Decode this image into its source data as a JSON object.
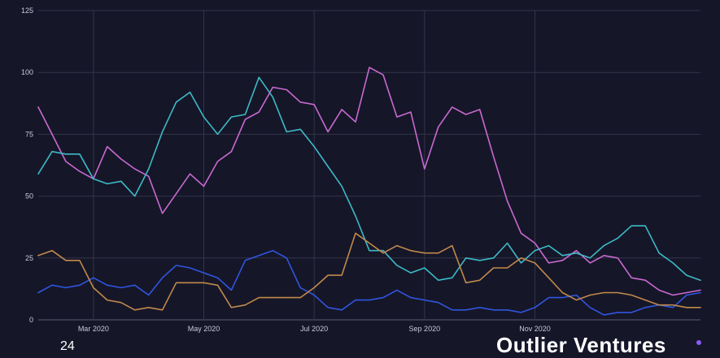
{
  "chart_data": {
    "type": "line",
    "title": "",
    "xlabel": "",
    "ylabel": "",
    "ylim": [
      0,
      125
    ],
    "yticks": [
      0,
      25,
      50,
      75,
      100,
      125
    ],
    "xtick_labels": [
      "Mar 2020",
      "May 2020",
      "Jul 2020",
      "Sep 2020",
      "Nov 2020"
    ],
    "xtick_index": [
      4,
      12,
      20,
      28,
      36
    ],
    "grid": true,
    "legend": "none",
    "x_step": "weekly",
    "series": [
      {
        "color": "#c86ad0",
        "values": [
          86,
          75,
          64,
          60,
          57,
          70,
          65,
          61,
          58,
          43,
          51,
          59,
          54,
          64,
          68,
          81,
          84,
          94,
          93,
          88,
          87,
          76,
          85,
          80,
          102,
          99,
          82,
          84,
          61,
          78,
          86,
          83,
          85,
          66,
          48,
          35,
          31,
          23,
          24,
          28,
          23,
          26,
          25,
          17,
          16,
          12,
          10,
          11,
          12
        ]
      },
      {
        "color": "#3cbac6",
        "values": [
          59,
          68,
          67,
          67,
          57,
          55,
          56,
          50,
          61,
          76,
          88,
          92,
          82,
          75,
          82,
          83,
          98,
          90,
          76,
          77,
          70,
          62,
          54,
          42,
          28,
          28,
          22,
          19,
          21,
          16,
          17,
          25,
          24,
          25,
          31,
          23,
          28,
          30,
          26,
          27,
          25,
          30,
          33,
          38,
          38,
          27,
          23,
          18,
          16
        ]
      },
      {
        "color": "#2f56df",
        "values": [
          11,
          14,
          13,
          14,
          17,
          14,
          13,
          14,
          10,
          17,
          22,
          21,
          19,
          17,
          12,
          24,
          26,
          28,
          25,
          13,
          10,
          5,
          4,
          8,
          8,
          9,
          12,
          9,
          8,
          7,
          4,
          4,
          5,
          4,
          4,
          3,
          5,
          9,
          9,
          10,
          5,
          2,
          3,
          3,
          5,
          6,
          5,
          10,
          11
        ]
      },
      {
        "color": "#c08a4a",
        "values": [
          26,
          28,
          24,
          24,
          13,
          8,
          7,
          4,
          5,
          4,
          15,
          15,
          15,
          14,
          5,
          6,
          9,
          9,
          9,
          9,
          13,
          18,
          18,
          35,
          31,
          27,
          30,
          28,
          27,
          27,
          30,
          15,
          16,
          21,
          21,
          25,
          23,
          17,
          11,
          8,
          10,
          11,
          11,
          10,
          8,
          6,
          6,
          5,
          5
        ]
      }
    ]
  },
  "footer": {
    "page_number": "24",
    "brand": "Outlier Ventures"
  }
}
